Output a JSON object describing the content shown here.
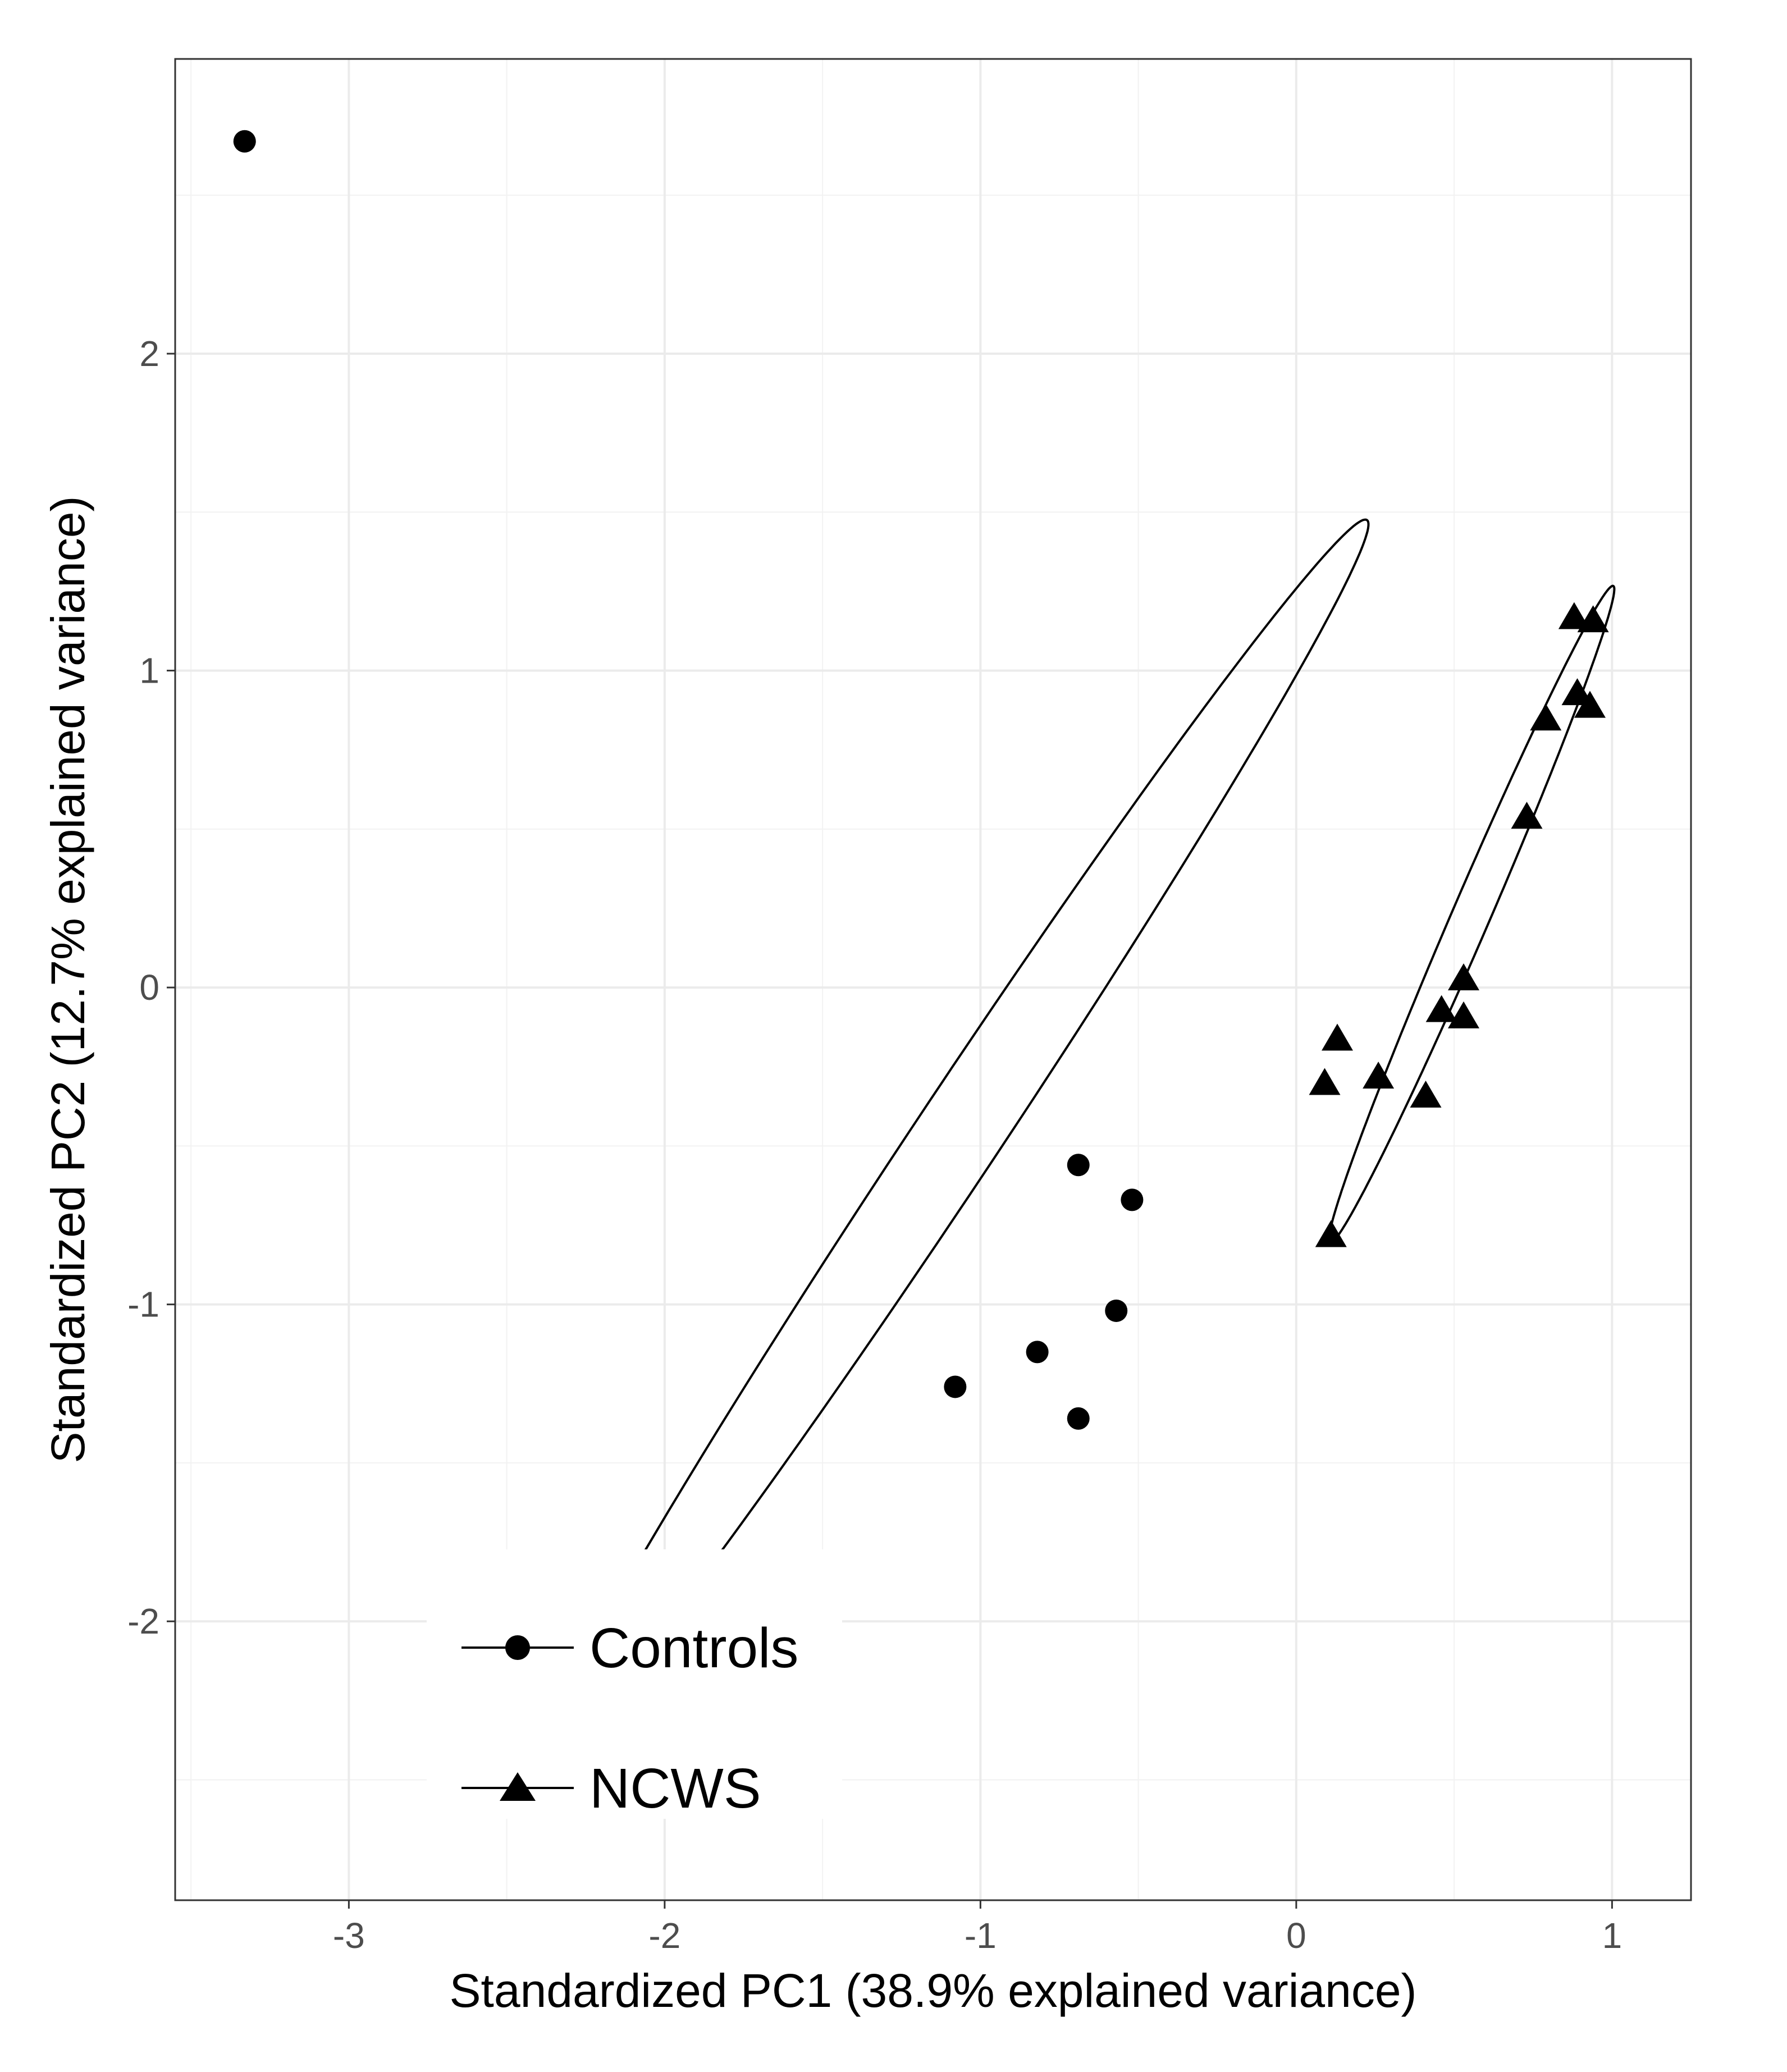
{
  "chart_data": {
    "type": "scatter",
    "title": "",
    "xlabel": "Standardized PC1 (38.9% explained variance)",
    "ylabel": "Standardized PC2 (12.7% explained variance)",
    "xlim": [
      -3.55,
      1.25
    ],
    "ylim": [
      -2.88,
      2.93
    ],
    "xticks": [
      -3,
      -2,
      -1,
      0,
      1
    ],
    "yticks": [
      -2,
      -1,
      0,
      1,
      2
    ],
    "xtick_labels": [
      "-3",
      "-2",
      "-1",
      "0",
      "1"
    ],
    "ytick_labels": [
      "-2",
      "-1",
      "0",
      "1",
      "2"
    ],
    "grid": true,
    "legend_position": "bottom-left",
    "series": [
      {
        "name": "Controls",
        "marker": "circle",
        "points": [
          {
            "x": -3.33,
            "y": 2.67
          },
          {
            "x": -0.69,
            "y": -0.56
          },
          {
            "x": -0.52,
            "y": -0.67
          },
          {
            "x": -0.57,
            "y": -1.02
          },
          {
            "x": -0.82,
            "y": -1.15
          },
          {
            "x": -1.08,
            "y": -1.26
          },
          {
            "x": -0.69,
            "y": -1.36
          }
        ],
        "ellipse": {
          "cx": -1.08,
          "cy": -0.48,
          "major_half": 2.35,
          "minor_half": 0.135,
          "angle_deg": 56.3
        }
      },
      {
        "name": "NCWS",
        "marker": "triangle",
        "points": [
          {
            "x": 0.88,
            "y": 1.17
          },
          {
            "x": 0.94,
            "y": 1.16
          },
          {
            "x": 0.89,
            "y": 0.93
          },
          {
            "x": 0.93,
            "y": 0.89
          },
          {
            "x": 0.79,
            "y": 0.85
          },
          {
            "x": 0.73,
            "y": 0.54
          },
          {
            "x": 0.53,
            "y": 0.03
          },
          {
            "x": 0.46,
            "y": -0.07
          },
          {
            "x": 0.53,
            "y": -0.09
          },
          {
            "x": 0.13,
            "y": -0.16
          },
          {
            "x": 0.09,
            "y": -0.3
          },
          {
            "x": 0.26,
            "y": -0.28
          },
          {
            "x": 0.41,
            "y": -0.34
          },
          {
            "x": 0.11,
            "y": -0.78
          }
        ],
        "ellipse": {
          "cx": 0.555,
          "cy": 0.23,
          "major_half": 1.13,
          "minor_half": 0.06,
          "angle_deg": 66.6
        }
      }
    ]
  }
}
